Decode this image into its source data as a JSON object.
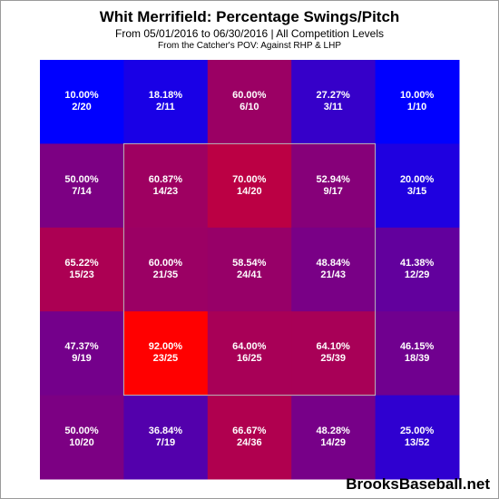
{
  "header": {
    "title": "Whit Merrifield: Percentage Swings/Pitch",
    "subtitle": "From 05/01/2016 to 06/30/2016 | All Competition Levels",
    "subtitle2": "From the Catcher's POV:  Against RHP & LHP"
  },
  "brand": "BrooksBaseball.net",
  "chart_data": {
    "type": "heatmap",
    "title": "Whit Merrifield: Percentage Swings/Pitch",
    "rows": 5,
    "cols": 5,
    "strike_zone": {
      "rows": [
        1,
        3
      ],
      "cols": [
        1,
        3
      ]
    },
    "color_scale": {
      "low": "#0000ff",
      "high": "#ff0000"
    },
    "cells": [
      [
        {
          "pct": "10.00%",
          "ratio": "2/20",
          "value": 10.0
        },
        {
          "pct": "18.18%",
          "ratio": "2/11",
          "value": 18.18
        },
        {
          "pct": "60.00%",
          "ratio": "6/10",
          "value": 60.0
        },
        {
          "pct": "27.27%",
          "ratio": "3/11",
          "value": 27.27
        },
        {
          "pct": "10.00%",
          "ratio": "1/10",
          "value": 10.0
        }
      ],
      [
        {
          "pct": "50.00%",
          "ratio": "7/14",
          "value": 50.0
        },
        {
          "pct": "60.87%",
          "ratio": "14/23",
          "value": 60.87
        },
        {
          "pct": "70.00%",
          "ratio": "14/20",
          "value": 70.0
        },
        {
          "pct": "52.94%",
          "ratio": "9/17",
          "value": 52.94
        },
        {
          "pct": "20.00%",
          "ratio": "3/15",
          "value": 20.0
        }
      ],
      [
        {
          "pct": "65.22%",
          "ratio": "15/23",
          "value": 65.22
        },
        {
          "pct": "60.00%",
          "ratio": "21/35",
          "value": 60.0
        },
        {
          "pct": "58.54%",
          "ratio": "24/41",
          "value": 58.54
        },
        {
          "pct": "48.84%",
          "ratio": "21/43",
          "value": 48.84
        },
        {
          "pct": "41.38%",
          "ratio": "12/29",
          "value": 41.38
        }
      ],
      [
        {
          "pct": "47.37%",
          "ratio": "9/19",
          "value": 47.37
        },
        {
          "pct": "92.00%",
          "ratio": "23/25",
          "value": 92.0
        },
        {
          "pct": "64.00%",
          "ratio": "16/25",
          "value": 64.0
        },
        {
          "pct": "64.10%",
          "ratio": "25/39",
          "value": 64.1
        },
        {
          "pct": "46.15%",
          "ratio": "18/39",
          "value": 46.15
        }
      ],
      [
        {
          "pct": "50.00%",
          "ratio": "10/20",
          "value": 50.0
        },
        {
          "pct": "36.84%",
          "ratio": "7/19",
          "value": 36.84
        },
        {
          "pct": "66.67%",
          "ratio": "24/36",
          "value": 66.67
        },
        {
          "pct": "48.28%",
          "ratio": "14/29",
          "value": 48.28
        },
        {
          "pct": "25.00%",
          "ratio": "13/52",
          "value": 25.0
        }
      ]
    ]
  }
}
